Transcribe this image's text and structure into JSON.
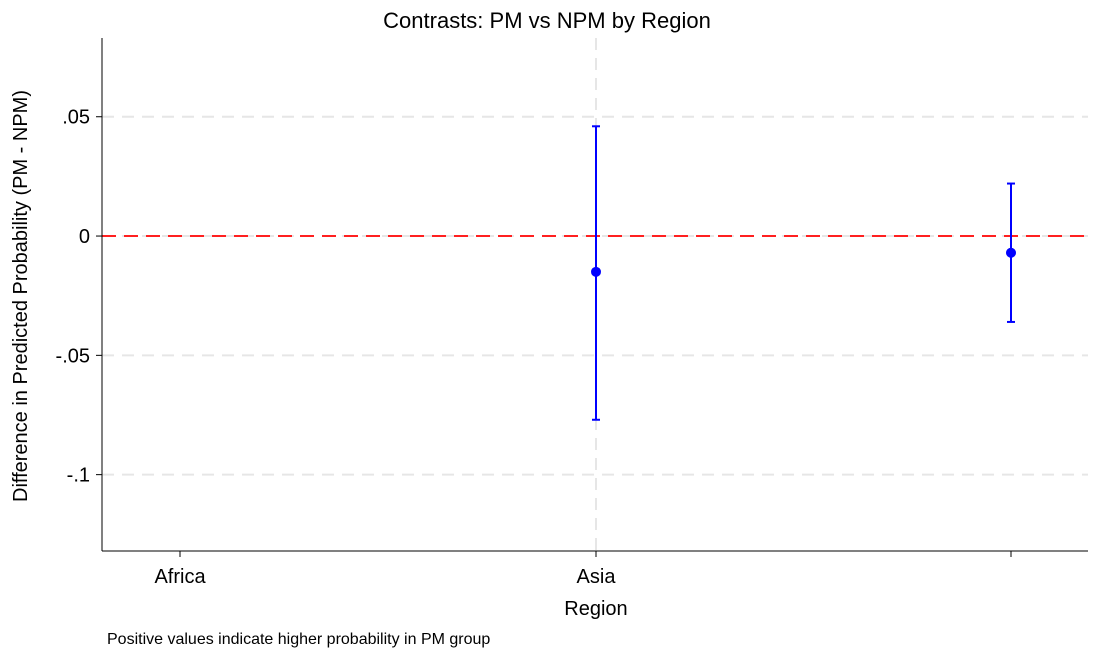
{
  "chart_data": {
    "type": "scatter",
    "title": "Contrasts: PM vs NPM by Region",
    "xlabel": "Region",
    "ylabel": "Difference in Predicted Probability (PM - NPM)",
    "note": "Positive values indicate higher probability in PM group",
    "categories": [
      "Africa",
      "Asia",
      ""
    ],
    "ylim": [
      -0.132,
      0.083
    ],
    "yticks": [
      {
        "value": 0.05,
        "label": ".05"
      },
      {
        "value": 0,
        "label": "0"
      },
      {
        "value": -0.05,
        "label": "-.05"
      },
      {
        "value": -0.1,
        "label": "-.1"
      }
    ],
    "grid": true,
    "reference_line": {
      "value": 0,
      "color": "#ff2020",
      "style": "dashed"
    },
    "series": [
      {
        "color": "#0000ff",
        "points": [
          {
            "category": "Asia",
            "estimate": -0.015,
            "lower": -0.077,
            "upper": 0.046
          },
          {
            "category": "",
            "estimate": -0.007,
            "lower": -0.036,
            "upper": 0.022
          }
        ]
      }
    ]
  }
}
